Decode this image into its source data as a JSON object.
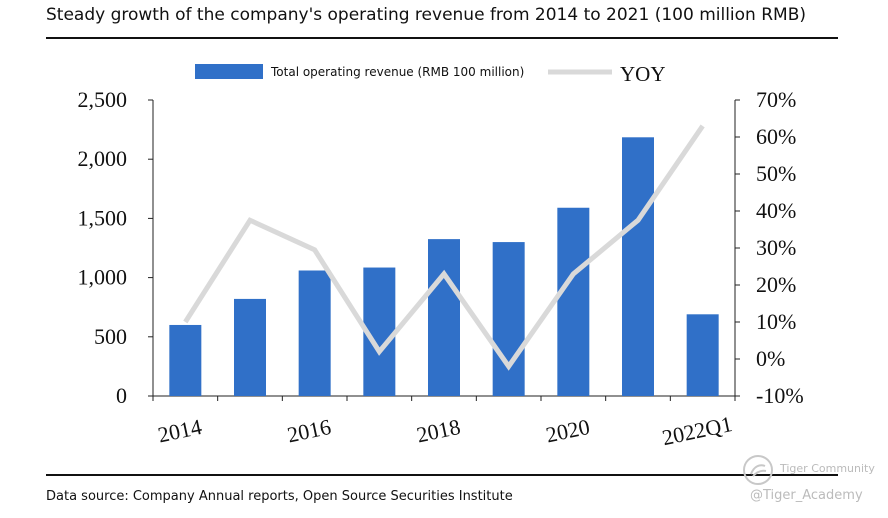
{
  "page": {
    "title": "Steady growth of the company's operating revenue from 2014 to 2021 (100 million RMB)",
    "source": "Data source: Company Annual reports, Open Source Securities Institute",
    "watermark": {
      "community": "Tiger Community",
      "handle": "@Tiger_Academy"
    }
  },
  "chart_data": {
    "type": "bar",
    "title": "Steady growth of the company's operating revenue from 2014 to 2021 (100 million RMB)",
    "categories": [
      "2014",
      "2015",
      "2016",
      "2017",
      "2018",
      "2019",
      "2020",
      "2021",
      "2022Q1"
    ],
    "x_tick_labels": [
      "2014",
      "2016",
      "2018",
      "2020",
      "2022Q1"
    ],
    "series": [
      {
        "name": "Total operating revenue (RMB 100 million)",
        "type": "bar",
        "axis": "left",
        "color": "#3070c8",
        "values": [
          600,
          820,
          1060,
          1085,
          1325,
          1300,
          1590,
          2185,
          690
        ]
      },
      {
        "name": "YOY",
        "type": "line",
        "axis": "right",
        "color": "#d9d9d9",
        "values": [
          10,
          37.5,
          29.5,
          2,
          23,
          -2,
          23,
          37.5,
          63
        ]
      }
    ],
    "y_left": {
      "ylim": [
        0,
        2500
      ],
      "ticks": [
        0,
        500,
        1000,
        1500,
        2000,
        2500
      ],
      "tick_labels": [
        "0",
        "500",
        "1,000",
        "1,500",
        "2,000",
        "2,500"
      ]
    },
    "y_right": {
      "ylim": [
        -10,
        70
      ],
      "ticks": [
        -10,
        0,
        10,
        20,
        30,
        40,
        50,
        60,
        70
      ],
      "tick_labels": [
        "-10%",
        "0%",
        "10%",
        "20%",
        "30%",
        "40%",
        "50%",
        "60%",
        "70%"
      ]
    },
    "grid": false,
    "legend_position": "top"
  }
}
